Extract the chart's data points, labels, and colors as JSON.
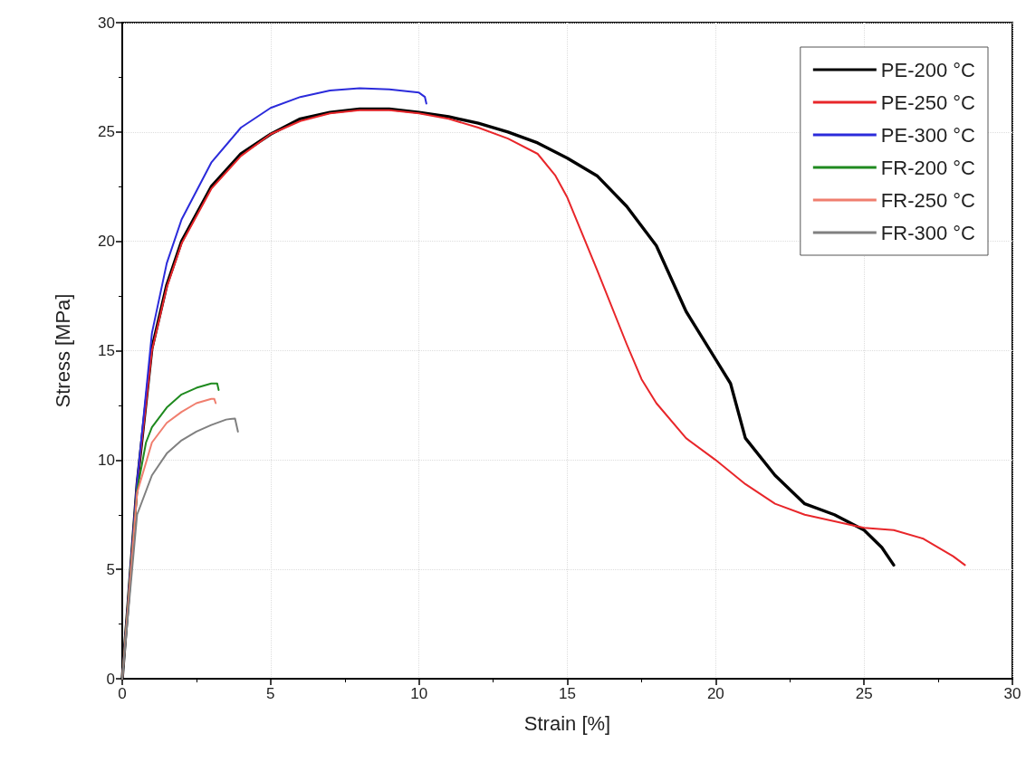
{
  "chart_data": {
    "type": "line",
    "xlabel": "Strain [%]",
    "ylabel": "Stress [MPa]",
    "xlim": [
      0,
      30
    ],
    "xticks": [
      0,
      5,
      10,
      15,
      20,
      25,
      30
    ],
    "ylim": [
      0,
      30
    ],
    "yticks": [
      0,
      5,
      10,
      15,
      20,
      25,
      30
    ],
    "grid": true,
    "legend": "top right",
    "marker": "none",
    "line_style": "solid",
    "series": [
      {
        "name": "PE-200 °C",
        "color": "#000000",
        "x": [
          0,
          0.2,
          0.5,
          1,
          1.5,
          2,
          3,
          4,
          5,
          6,
          7,
          8,
          9,
          10,
          11,
          12,
          13,
          14,
          15,
          16,
          17,
          18,
          19,
          20,
          20.5,
          21,
          22,
          23,
          24,
          25,
          25.6,
          26
        ],
        "values": [
          0,
          3.5,
          8.9,
          15.1,
          18,
          20,
          22.5,
          24,
          24.9,
          25.6,
          25.9,
          26.05,
          26.05,
          25.9,
          25.7,
          25.4,
          25,
          24.5,
          23.8,
          23,
          21.6,
          19.8,
          16.8,
          14.6,
          13.5,
          11,
          9.3,
          8,
          7.5,
          6.8,
          6,
          5.2
        ]
      },
      {
        "name": "PE-250 °C",
        "color": "#e8262a",
        "x": [
          0,
          0.2,
          0.5,
          1,
          1.5,
          2,
          3,
          4,
          5,
          6,
          7,
          8,
          9,
          10,
          11,
          12,
          13,
          14,
          14.6,
          15,
          16,
          17,
          17.5,
          18,
          19,
          20,
          21,
          22,
          23,
          24,
          25,
          26,
          27,
          28,
          28.4
        ],
        "values": [
          0,
          3.5,
          8.9,
          15,
          17.9,
          19.9,
          22.4,
          23.9,
          24.9,
          25.5,
          25.85,
          26,
          26,
          25.85,
          25.6,
          25.2,
          24.7,
          24,
          23,
          22,
          18.7,
          15.3,
          13.7,
          12.6,
          11,
          10,
          8.9,
          8,
          7.5,
          7.2,
          6.9,
          6.8,
          6.4,
          5.6,
          5.2
        ]
      },
      {
        "name": "PE-300 °C",
        "color": "#2b2bdb",
        "x": [
          0,
          0.2,
          0.5,
          1,
          1.5,
          2,
          3,
          4,
          5,
          6,
          7,
          8,
          9,
          10,
          10.2,
          10.25
        ],
        "values": [
          0,
          3.6,
          9,
          15.8,
          19,
          21,
          23.6,
          25.2,
          26.1,
          26.6,
          26.9,
          27,
          26.95,
          26.8,
          26.6,
          26.3
        ]
      },
      {
        "name": "FR-200 °C",
        "color": "#1f8a1f",
        "x": [
          0,
          0.2,
          0.5,
          0.8,
          1,
          1.5,
          2,
          2.5,
          3,
          3.2,
          3.25
        ],
        "values": [
          0,
          3.5,
          8.6,
          10.8,
          11.5,
          12.4,
          13,
          13.3,
          13.5,
          13.5,
          13.2
        ]
      },
      {
        "name": "FR-250 °C",
        "color": "#f07e6e",
        "x": [
          0,
          0.2,
          0.5,
          1,
          1.5,
          2,
          2.5,
          3,
          3.1,
          3.15
        ],
        "values": [
          0,
          3.4,
          8.5,
          10.8,
          11.7,
          12.2,
          12.6,
          12.8,
          12.8,
          12.6
        ]
      },
      {
        "name": "FR-300 °C",
        "color": "#808080",
        "x": [
          0,
          0.2,
          0.5,
          1,
          1.5,
          2,
          2.5,
          3,
          3.5,
          3.8,
          3.9
        ],
        "values": [
          0,
          3,
          7.5,
          9.3,
          10.3,
          10.9,
          11.3,
          11.6,
          11.85,
          11.9,
          11.3
        ]
      }
    ]
  }
}
